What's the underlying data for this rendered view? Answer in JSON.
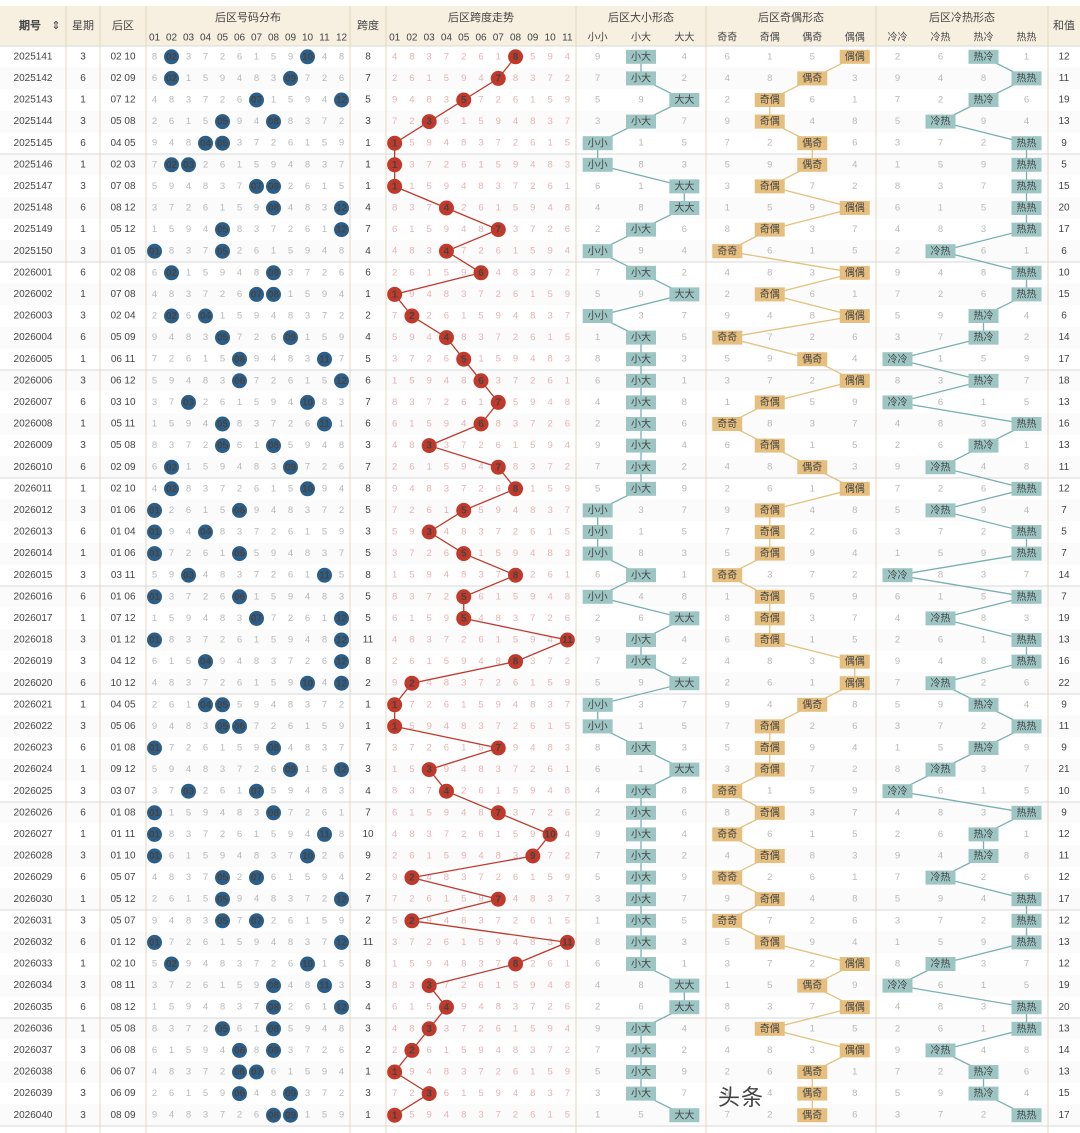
{
  "headers": {
    "period": "期号",
    "period_sort_icon": "sort-icon",
    "weekday": "星期",
    "back": "后区",
    "dist": "后区号码分布",
    "span": "跨度",
    "span_trend": "后区跨度走势",
    "size": "后区大小形态",
    "oddeven": "后区奇偶形态",
    "hotcold": "后区冷热形态",
    "sum": "和值",
    "size_sub": [
      "小小",
      "小大",
      "大大"
    ],
    "oddeven_sub": [
      "奇奇",
      "奇偶",
      "偶奇",
      "偶偶"
    ],
    "hotcold_sub": [
      "冷冷",
      "冷热",
      "热冷",
      "热热"
    ],
    "nums": [
      "01",
      "02",
      "03",
      "04",
      "05",
      "06",
      "07",
      "08",
      "09",
      "10",
      "11",
      "12"
    ],
    "span_nums": [
      "01",
      "02",
      "03",
      "04",
      "05",
      "06",
      "07",
      "08",
      "09",
      "10",
      "11"
    ]
  },
  "colors": {
    "ball_blue": "#2b5f8a",
    "ball_red": "#c0392b",
    "size_tag": "#9cc5c4",
    "oddeven_tag": "#e6bf7e",
    "hotcold_tag": "#9cc5c4",
    "line_red": "#c0392b",
    "line_teal": "#7ab0b0",
    "line_gold": "#e2c27e",
    "header_bg": "#f7efe0"
  },
  "rows": [
    {
      "period": "2025141",
      "weekday": "3",
      "back": "02 10",
      "span": "8",
      "size": "小大",
      "oe": "偶偶",
      "hc": "热冷",
      "sum": "12"
    },
    {
      "period": "2025142",
      "weekday": "6",
      "back": "02 09",
      "span": "7",
      "size": "小大",
      "oe": "偶奇",
      "hc": "热热",
      "sum": "11"
    },
    {
      "period": "2025143",
      "weekday": "1",
      "back": "07 12",
      "span": "5",
      "size": "大大",
      "oe": "奇偶",
      "hc": "热冷",
      "sum": "19"
    },
    {
      "period": "2025144",
      "weekday": "3",
      "back": "05 08",
      "span": "3",
      "size": "小大",
      "oe": "奇偶",
      "hc": "冷热",
      "sum": "13"
    },
    {
      "period": "2025145",
      "weekday": "6",
      "back": "04 05",
      "span": "1",
      "size": "小小",
      "oe": "偶奇",
      "hc": "热热",
      "sum": "9"
    },
    {
      "period": "2025146",
      "weekday": "1",
      "back": "02 03",
      "span": "1",
      "size": "小小",
      "oe": "偶奇",
      "hc": "热热",
      "sum": "5"
    },
    {
      "period": "2025147",
      "weekday": "3",
      "back": "07 08",
      "span": "1",
      "size": "大大",
      "oe": "奇偶",
      "hc": "热热",
      "sum": "15"
    },
    {
      "period": "2025148",
      "weekday": "6",
      "back": "08 12",
      "span": "4",
      "size": "大大",
      "oe": "偶偶",
      "hc": "热热",
      "sum": "20"
    },
    {
      "period": "2025149",
      "weekday": "1",
      "back": "05 12",
      "span": "7",
      "size": "小大",
      "oe": "奇偶",
      "hc": "热热",
      "sum": "17"
    },
    {
      "period": "2025150",
      "weekday": "3",
      "back": "01 05",
      "span": "4",
      "size": "小小",
      "oe": "奇奇",
      "hc": "冷热",
      "sum": "6"
    },
    {
      "period": "2026001",
      "weekday": "6",
      "back": "02 08",
      "span": "6",
      "size": "小大",
      "oe": "偶偶",
      "hc": "热热",
      "sum": "10"
    },
    {
      "period": "2026002",
      "weekday": "1",
      "back": "07 08",
      "span": "1",
      "size": "大大",
      "oe": "奇偶",
      "hc": "热热",
      "sum": "15"
    },
    {
      "period": "2026003",
      "weekday": "3",
      "back": "02 04",
      "span": "2",
      "size": "小小",
      "oe": "偶偶",
      "hc": "热冷",
      "sum": "6"
    },
    {
      "period": "2026004",
      "weekday": "6",
      "back": "05 09",
      "span": "4",
      "size": "小大",
      "oe": "奇奇",
      "hc": "热冷",
      "sum": "14"
    },
    {
      "period": "2026005",
      "weekday": "1",
      "back": "06 11",
      "span": "5",
      "size": "小大",
      "oe": "偶奇",
      "hc": "冷冷",
      "sum": "17"
    },
    {
      "period": "2026006",
      "weekday": "3",
      "back": "06 12",
      "span": "6",
      "size": "小大",
      "oe": "偶偶",
      "hc": "热冷",
      "sum": "18"
    },
    {
      "period": "2026007",
      "weekday": "6",
      "back": "03 10",
      "span": "7",
      "size": "小大",
      "oe": "奇偶",
      "hc": "冷冷",
      "sum": "13"
    },
    {
      "period": "2026008",
      "weekday": "1",
      "back": "05 11",
      "span": "6",
      "size": "小大",
      "oe": "奇奇",
      "hc": "热热",
      "sum": "16"
    },
    {
      "period": "2026009",
      "weekday": "3",
      "back": "05 08",
      "span": "3",
      "size": "小大",
      "oe": "奇偶",
      "hc": "热冷",
      "sum": "13"
    },
    {
      "period": "2026010",
      "weekday": "6",
      "back": "02 09",
      "span": "7",
      "size": "小大",
      "oe": "偶奇",
      "hc": "冷热",
      "sum": "11"
    },
    {
      "period": "2026011",
      "weekday": "1",
      "back": "02 10",
      "span": "8",
      "size": "小大",
      "oe": "偶偶",
      "hc": "热热",
      "sum": "12"
    },
    {
      "period": "2026012",
      "weekday": "3",
      "back": "01 06",
      "span": "5",
      "size": "小小",
      "oe": "奇偶",
      "hc": "冷热",
      "sum": "7"
    },
    {
      "period": "2026013",
      "weekday": "6",
      "back": "01 04",
      "span": "3",
      "size": "小小",
      "oe": "奇偶",
      "hc": "热热",
      "sum": "5"
    },
    {
      "period": "2026014",
      "weekday": "1",
      "back": "01 06",
      "span": "5",
      "size": "小小",
      "oe": "奇偶",
      "hc": "热热",
      "sum": "7"
    },
    {
      "period": "2026015",
      "weekday": "3",
      "back": "03 11",
      "span": "8",
      "size": "小大",
      "oe": "奇奇",
      "hc": "冷冷",
      "sum": "14"
    },
    {
      "period": "2026016",
      "weekday": "6",
      "back": "01 06",
      "span": "5",
      "size": "小小",
      "oe": "奇偶",
      "hc": "热热",
      "sum": "7"
    },
    {
      "period": "2026017",
      "weekday": "1",
      "back": "07 12",
      "span": "5",
      "size": "大大",
      "oe": "奇偶",
      "hc": "冷热",
      "sum": "19"
    },
    {
      "period": "2026018",
      "weekday": "3",
      "back": "01 12",
      "span": "11",
      "size": "小大",
      "oe": "奇偶",
      "hc": "热热",
      "sum": "13"
    },
    {
      "period": "2026019",
      "weekday": "3",
      "back": "04 12",
      "span": "8",
      "size": "小大",
      "oe": "偶偶",
      "hc": "热热",
      "sum": "16"
    },
    {
      "period": "2026020",
      "weekday": "6",
      "back": "10 12",
      "span": "2",
      "size": "大大",
      "oe": "偶偶",
      "hc": "冷热",
      "sum": "22"
    },
    {
      "period": "2026021",
      "weekday": "1",
      "back": "04 05",
      "span": "1",
      "size": "小小",
      "oe": "偶奇",
      "hc": "热冷",
      "sum": "9"
    },
    {
      "period": "2026022",
      "weekday": "3",
      "back": "05 06",
      "span": "1",
      "size": "小小",
      "oe": "奇偶",
      "hc": "热热",
      "sum": "11"
    },
    {
      "period": "2026023",
      "weekday": "6",
      "back": "01 08",
      "span": "7",
      "size": "小大",
      "oe": "奇偶",
      "hc": "热冷",
      "sum": "9"
    },
    {
      "period": "2026024",
      "weekday": "1",
      "back": "09 12",
      "span": "3",
      "size": "大大",
      "oe": "奇偶",
      "hc": "冷热",
      "sum": "21"
    },
    {
      "period": "2026025",
      "weekday": "3",
      "back": "03 07",
      "span": "4",
      "size": "小大",
      "oe": "奇奇",
      "hc": "冷冷",
      "sum": "10"
    },
    {
      "period": "2026026",
      "weekday": "6",
      "back": "01 08",
      "span": "7",
      "size": "小大",
      "oe": "奇偶",
      "hc": "热热",
      "sum": "9"
    },
    {
      "period": "2026027",
      "weekday": "1",
      "back": "01 11",
      "span": "10",
      "size": "小大",
      "oe": "奇奇",
      "hc": "热冷",
      "sum": "12"
    },
    {
      "period": "2026028",
      "weekday": "3",
      "back": "01 10",
      "span": "9",
      "size": "小大",
      "oe": "奇偶",
      "hc": "热冷",
      "sum": "11"
    },
    {
      "period": "2026029",
      "weekday": "6",
      "back": "05 07",
      "span": "2",
      "size": "小大",
      "oe": "奇奇",
      "hc": "冷热",
      "sum": "12"
    },
    {
      "period": "2026030",
      "weekday": "1",
      "back": "05 12",
      "span": "7",
      "size": "小大",
      "oe": "奇偶",
      "hc": "热热",
      "sum": "17"
    },
    {
      "period": "2026031",
      "weekday": "3",
      "back": "05 07",
      "span": "2",
      "size": "小大",
      "oe": "奇奇",
      "hc": "热热",
      "sum": "12"
    },
    {
      "period": "2026032",
      "weekday": "6",
      "back": "01 12",
      "span": "11",
      "size": "小大",
      "oe": "奇偶",
      "hc": "热热",
      "sum": "13"
    },
    {
      "period": "2026033",
      "weekday": "1",
      "back": "02 10",
      "span": "8",
      "size": "小大",
      "oe": "偶偶",
      "hc": "冷热",
      "sum": "12"
    },
    {
      "period": "2026034",
      "weekday": "3",
      "back": "08 11",
      "span": "3",
      "size": "大大",
      "oe": "偶奇",
      "hc": "冷冷",
      "sum": "19"
    },
    {
      "period": "2026035",
      "weekday": "6",
      "back": "08 12",
      "span": "4",
      "size": "大大",
      "oe": "偶偶",
      "hc": "热热",
      "sum": "20"
    },
    {
      "period": "2026036",
      "weekday": "1",
      "back": "05 08",
      "span": "3",
      "size": "小大",
      "oe": "奇偶",
      "hc": "热热",
      "sum": "13"
    },
    {
      "period": "2026037",
      "weekday": "3",
      "back": "06 08",
      "span": "2",
      "size": "小大",
      "oe": "偶偶",
      "hc": "冷热",
      "sum": "14"
    },
    {
      "period": "2026038",
      "weekday": "6",
      "back": "06 07",
      "span": "1",
      "size": "小大",
      "oe": "偶奇",
      "hc": "热冷",
      "sum": "13"
    },
    {
      "period": "2026039",
      "weekday": "3",
      "back": "06 09",
      "span": "3",
      "size": "小大",
      "oe": "偶奇",
      "hc": "热冷",
      "sum": "15"
    },
    {
      "period": "2026040",
      "weekday": "3",
      "back": "08 09",
      "span": "1",
      "size": "大大",
      "oe": "偶奇",
      "hc": "热热",
      "sum": "17"
    }
  ],
  "watermark": "头条"
}
